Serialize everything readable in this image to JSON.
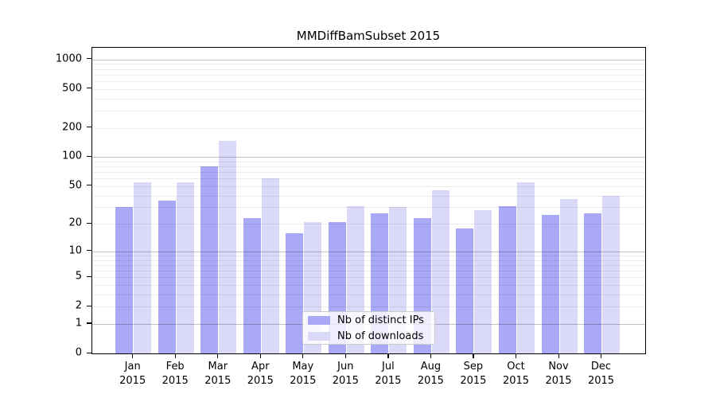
{
  "title": "MMDiffBamSubset 2015",
  "chart_data": {
    "type": "bar",
    "title": "MMDiffBamSubset 2015",
    "y_scale": "log10(1+x)",
    "categories": [
      "Jan 2015",
      "Feb 2015",
      "Mar 2015",
      "Apr 2015",
      "May 2015",
      "Jun 2015",
      "Jul 2015",
      "Aug 2015",
      "Sep 2015",
      "Oct 2015",
      "Nov 2015",
      "Dec 2015"
    ],
    "series": [
      {
        "name": "Nb of distinct IPs",
        "color": "#a9a9f8",
        "values": [
          30,
          35,
          80,
          23,
          16,
          21,
          26,
          23,
          18,
          31,
          25,
          26
        ]
      },
      {
        "name": "Nb of downloads",
        "color": "#dadaf8",
        "values": [
          55,
          55,
          148,
          60,
          21,
          31,
          30,
          45,
          28,
          55,
          37,
          40
        ]
      }
    ],
    "xlabel": "",
    "ylabel": "",
    "y_ticks": [
      0,
      1,
      2,
      5,
      10,
      20,
      50,
      100,
      200,
      500,
      1000
    ],
    "major_gridlines": [
      1,
      10,
      100,
      1000
    ],
    "grid": true,
    "legend_position": "lower center"
  },
  "colors": {
    "bar_distinct_ips": "#a9a9f8",
    "bar_downloads": "#dadaf8",
    "grid_major": "#c4c4c4",
    "grid_minor": "#ececec",
    "axis": "#000000",
    "background": "#ffffff"
  }
}
